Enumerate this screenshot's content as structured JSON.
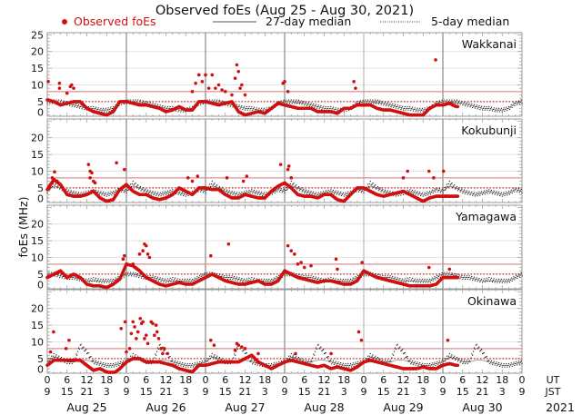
{
  "chart_data": {
    "type": "scatter",
    "title": "Observed foEs (Aug 25 - Aug 30, 2021)",
    "ylabel": "foEs (MHz)",
    "ylim": [
      0,
      25
    ],
    "yticks": [
      "0",
      "5",
      "10",
      "15",
      "20",
      "25"
    ],
    "x_unit_hours_from": "Aug 25 00 UT",
    "xlim_hours": [
      0,
      144
    ],
    "legend": {
      "placement": "top",
      "observed": "Observed foEs",
      "median27": "27-day median",
      "median5": "5-day median"
    },
    "x_tick_labels_ut": [
      "0",
      "6",
      "12",
      "18",
      "0",
      "6",
      "12",
      "18",
      "0",
      "6",
      "12",
      "18",
      "0",
      "6",
      "12",
      "18",
      "0",
      "6",
      "12",
      "18",
      "0",
      "6",
      "12",
      "18",
      "0"
    ],
    "x_tick_labels_jst": [
      "9",
      "15",
      "21",
      "3",
      "9",
      "15",
      "21",
      "3",
      "9",
      "15",
      "21",
      "3",
      "9",
      "15",
      "21",
      "3",
      "9",
      "15",
      "21",
      "3",
      "9",
      "15",
      "21",
      "3",
      "9"
    ],
    "ut_label": "UT",
    "jst_label": "JST",
    "year_label": "2021",
    "dates": [
      "Aug 25",
      "Aug 26",
      "Aug 27",
      "Aug 28",
      "Aug 29",
      "Aug 30"
    ],
    "reference_lines": {
      "solid": 8,
      "dotted": 5
    },
    "colors": {
      "observed": "#d01010",
      "median": "#111111",
      "ref_solid": "#d89090",
      "ref_dotted": "#cc2222",
      "day_line": "#888888",
      "grid": "#e4e4e4"
    },
    "observed_step_hours": 2,
    "median_profile_step_hours": 2,
    "stations": [
      {
        "name": "Wakkanai",
        "observed": [
          5.5,
          5,
          4,
          4.5,
          5,
          5,
          3,
          2,
          1.5,
          1,
          2,
          5,
          5,
          4.5,
          4,
          4,
          3.5,
          3,
          2,
          2.5,
          3.5,
          2.5,
          2.5,
          5,
          5,
          4.5,
          4,
          4.5,
          5,
          2,
          1,
          1.5,
          2,
          1.5,
          3,
          4.5,
          4,
          3.5,
          3,
          3,
          3,
          2,
          2,
          2,
          1.5,
          3,
          3,
          4,
          4,
          4,
          3,
          2.5,
          2.5,
          2,
          1.5,
          1,
          1,
          1,
          3,
          4,
          4,
          4.5,
          3.5
        ],
        "outliers": [
          [
            0.3,
            11
          ],
          [
            3.7,
            10.5
          ],
          [
            3.7,
            9
          ],
          [
            6,
            7.5
          ],
          [
            7,
            9.5
          ],
          [
            7.4,
            10
          ],
          [
            8,
            9
          ],
          [
            44,
            8
          ],
          [
            45,
            10.5
          ],
          [
            46,
            13
          ],
          [
            47,
            11
          ],
          [
            48,
            13
          ],
          [
            49,
            9
          ],
          [
            50,
            13
          ],
          [
            51,
            9
          ],
          [
            52,
            10
          ],
          [
            53,
            8.5
          ],
          [
            54,
            8
          ],
          [
            56,
            7
          ],
          [
            57,
            12
          ],
          [
            57.5,
            16
          ],
          [
            58,
            14
          ],
          [
            58.5,
            9
          ],
          [
            59,
            10
          ],
          [
            60,
            7
          ],
          [
            71.5,
            10.5
          ],
          [
            72,
            11
          ],
          [
            73,
            8
          ],
          [
            93,
            11
          ],
          [
            93.5,
            9
          ],
          [
            117.8,
            17.5
          ]
        ],
        "median5": [
          5,
          5,
          5,
          4.5,
          4,
          3.5,
          3,
          3,
          2.5,
          2.5,
          3,
          4.5
        ],
        "median27": [
          5,
          5,
          4.5,
          4.5,
          4,
          3.5,
          3,
          3,
          2.5,
          2.5,
          3,
          4.5
        ]
      },
      {
        "name": "Kokubunji",
        "observed": [
          4.5,
          7.5,
          6,
          3,
          2.5,
          2.5,
          3,
          4,
          2,
          1,
          1.5,
          4.5,
          6,
          4,
          3,
          3,
          2,
          1.5,
          2,
          3,
          5,
          4,
          3,
          5,
          5,
          4.5,
          4.5,
          3,
          2,
          2,
          3,
          2.5,
          2,
          2,
          4,
          5.5,
          6.5,
          5,
          3,
          2.5,
          2.5,
          2,
          3,
          3,
          1.5,
          1,
          3,
          5,
          5,
          4,
          3,
          2.5,
          3,
          3.5,
          4,
          3,
          2,
          1,
          2,
          2.5,
          2.5,
          2.5,
          2.5
        ],
        "outliers": [
          [
            0.5,
            5
          ],
          [
            1.5,
            8
          ],
          [
            2.2,
            9.8
          ],
          [
            3,
            7
          ],
          [
            12.5,
            12
          ],
          [
            13,
            10
          ],
          [
            13.5,
            9.5
          ],
          [
            13,
            8
          ],
          [
            14,
            7
          ],
          [
            14.5,
            6.5
          ],
          [
            21,
            12.5
          ],
          [
            23.4,
            10.5
          ],
          [
            42.7,
            8
          ],
          [
            44,
            7
          ],
          [
            45.6,
            8.5
          ],
          [
            54.5,
            8
          ],
          [
            59.5,
            7
          ],
          [
            60.5,
            8.5
          ],
          [
            70.8,
            12
          ],
          [
            73,
            10.5
          ],
          [
            73.3,
            11.5
          ],
          [
            74,
            8
          ],
          [
            108,
            8
          ],
          [
            109.3,
            10
          ],
          [
            115.8,
            10
          ],
          [
            117.2,
            8
          ],
          [
            120.2,
            10
          ]
        ],
        "median5": [
          4,
          6.5,
          5,
          4,
          3.5,
          3,
          3.5,
          4,
          3.5,
          3,
          3.5,
          4.5
        ],
        "median27": [
          4,
          5.5,
          5,
          4,
          3.5,
          3,
          3.5,
          4,
          3.5,
          3,
          3.5,
          4.5
        ]
      },
      {
        "name": "Yamagawa",
        "observed": [
          4,
          5,
          6,
          4,
          5,
          4,
          2,
          1.5,
          1.5,
          1,
          2,
          3.5,
          8,
          7.5,
          6,
          4,
          3,
          2,
          1.5,
          2,
          2.5,
          2,
          2,
          3,
          4,
          5,
          4,
          3,
          2.5,
          2,
          2,
          2.5,
          3,
          2,
          2,
          3,
          6,
          5,
          4,
          3.5,
          3,
          2.5,
          3,
          3,
          2.5,
          2,
          2,
          3,
          6,
          5,
          4,
          3.5,
          3,
          2.5,
          2,
          1.5,
          1.5,
          1.5,
          1.5,
          2,
          4,
          4,
          4
        ],
        "outliers": [
          [
            23,
            9.5
          ],
          [
            23.4,
            10.5
          ],
          [
            26,
            8
          ],
          [
            28,
            11
          ],
          [
            29,
            12
          ],
          [
            29.5,
            14
          ],
          [
            30,
            13.5
          ],
          [
            30.5,
            11
          ],
          [
            31,
            10
          ],
          [
            49.6,
            10.5
          ],
          [
            55,
            14
          ],
          [
            73,
            13.5
          ],
          [
            74,
            12
          ],
          [
            75,
            11
          ],
          [
            76,
            8
          ],
          [
            77,
            8.5
          ],
          [
            78,
            7
          ],
          [
            80,
            7.5
          ],
          [
            87.6,
            9.5
          ],
          [
            88,
            6.5
          ],
          [
            95.5,
            8.5
          ],
          [
            115.8,
            7
          ],
          [
            122,
            6.5
          ]
        ],
        "median5": [
          5,
          5,
          4.5,
          4,
          4,
          3.5,
          3,
          3.5,
          3,
          3,
          3,
          4
        ],
        "median27": [
          5,
          5,
          4.5,
          4,
          4,
          3.5,
          3,
          3,
          3,
          3,
          3,
          4
        ]
      },
      {
        "name": "Okinawa",
        "observed": [
          3,
          4.5,
          4.5,
          4.5,
          4.5,
          4.5,
          3,
          1.5,
          2,
          1,
          0.5,
          2,
          4,
          5,
          5,
          4,
          4,
          4,
          3.5,
          3,
          2,
          1.5,
          1,
          3,
          3,
          3.5,
          4,
          4,
          4,
          4,
          5,
          6,
          4,
          3,
          2,
          3,
          4,
          4.5,
          4,
          3.5,
          3,
          2.5,
          3,
          2,
          2.5,
          2,
          1.5,
          2.5,
          4,
          4.5,
          4,
          3.5,
          3,
          2.5,
          2,
          2,
          2,
          2.5,
          2,
          2,
          3,
          3.5,
          3
        ],
        "outliers": [
          [
            1,
            7
          ],
          [
            1.9,
            13
          ],
          [
            5.7,
            8
          ],
          [
            6.6,
            10.5
          ],
          [
            22.4,
            14
          ],
          [
            23.6,
            16
          ],
          [
            24,
            7
          ],
          [
            25,
            8
          ],
          [
            25.5,
            12.5
          ],
          [
            26,
            16
          ],
          [
            26.5,
            14.5
          ],
          [
            27,
            11
          ],
          [
            27.5,
            13
          ],
          [
            28.2,
            17
          ],
          [
            28.6,
            15.5
          ],
          [
            29,
            16
          ],
          [
            29.5,
            11
          ],
          [
            30,
            12
          ],
          [
            30.5,
            9.5
          ],
          [
            31.5,
            16
          ],
          [
            32,
            15.5
          ],
          [
            32.5,
            12
          ],
          [
            33,
            15
          ],
          [
            33.3,
            13
          ],
          [
            33.8,
            11
          ],
          [
            34.5,
            8
          ],
          [
            35,
            6.5
          ],
          [
            35.5,
            8
          ],
          [
            36.5,
            6.5
          ],
          [
            49.6,
            10.5
          ],
          [
            50.6,
            9
          ],
          [
            57,
            7.5
          ],
          [
            57.5,
            9.5
          ],
          [
            58,
            9
          ],
          [
            59,
            8.5
          ],
          [
            60,
            8
          ],
          [
            64,
            6.5
          ],
          [
            75.3,
            6.5
          ],
          [
            86.1,
            6.5
          ],
          [
            94.5,
            13
          ],
          [
            95.3,
            10.5
          ],
          [
            121.5,
            10.5
          ]
        ],
        "median5": [
          4,
          6,
          5,
          4,
          4,
          9,
          7,
          4,
          3.5,
          3,
          3,
          3.5
        ],
        "median27": [
          4,
          5.5,
          5,
          4,
          4,
          4.5,
          4.5,
          4,
          3.5,
          3,
          3,
          3.5
        ]
      }
    ]
  }
}
